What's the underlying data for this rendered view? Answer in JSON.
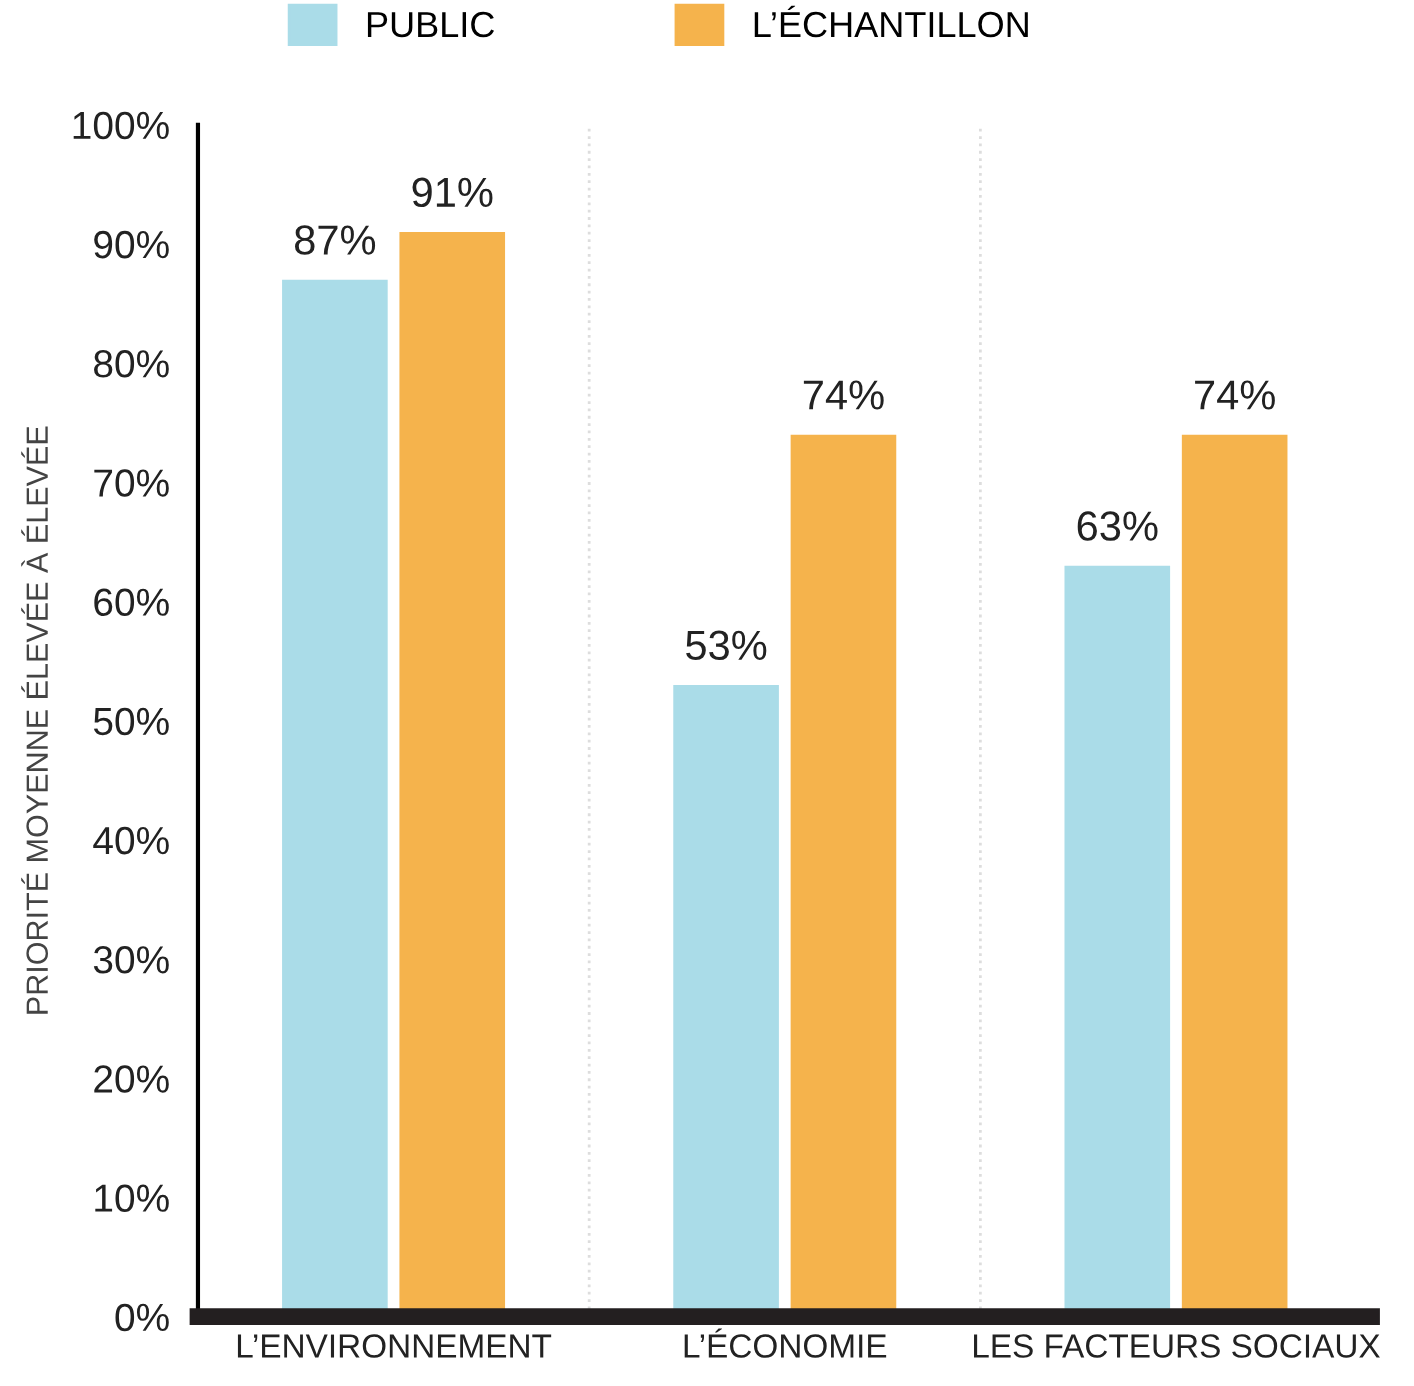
{
  "chart_data": {
    "type": "bar",
    "ylabel": "PRIORITÉ MOYENNE ÉLEVÉE À ÉLEVÉE",
    "categories": [
      "L’ENVIRONNEMENT",
      "L’ÉCONOMIE",
      "LES FACTEURS SOCIAUX"
    ],
    "series": [
      {
        "name": "PUBLIC",
        "color": "#aadce8",
        "values": [
          87,
          53,
          63
        ],
        "value_labels": [
          "87%",
          "53%",
          "63%"
        ]
      },
      {
        "name": "L’ÉCHANTILLON",
        "color": "#f5b34c",
        "values": [
          91,
          74,
          74
        ],
        "value_labels": [
          "91%",
          "74%",
          "74%"
        ]
      }
    ],
    "ylim": [
      0,
      100
    ],
    "yticks": [
      {
        "value": 0,
        "label": "0%"
      },
      {
        "value": 10,
        "label": "10%"
      },
      {
        "value": 20,
        "label": "20%"
      },
      {
        "value": 30,
        "label": "30%"
      },
      {
        "value": 40,
        "label": "40%"
      },
      {
        "value": 50,
        "label": "50%"
      },
      {
        "value": 60,
        "label": "60%"
      },
      {
        "value": 70,
        "label": "70%"
      },
      {
        "value": 80,
        "label": "80%"
      },
      {
        "value": 90,
        "label": "90%"
      },
      {
        "value": 100,
        "label": "100%"
      }
    ],
    "grid": false,
    "legend": "top left"
  }
}
